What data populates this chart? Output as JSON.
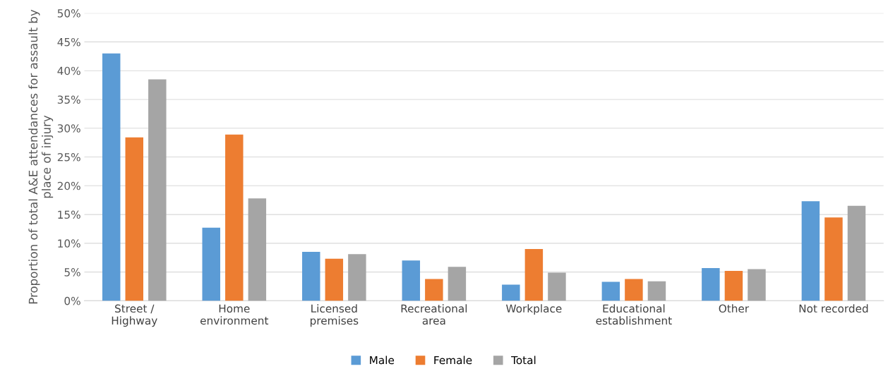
{
  "chart_data": {
    "type": "bar",
    "ylabel": "Proportion of total A&E attendances for assault by\nplace of injury",
    "categories": [
      "Street /\nHighway",
      "Home\nenvironment",
      "Licensed\npremises",
      "Recreational\narea",
      "Workplace",
      "Educational\nestablishment",
      "Other",
      "Not recorded"
    ],
    "series": [
      {
        "name": "Male",
        "color": "#5b9bd5",
        "values": [
          43.0,
          12.7,
          8.5,
          7.0,
          2.8,
          3.3,
          5.7,
          17.3
        ]
      },
      {
        "name": "Female",
        "color": "#ed7d31",
        "values": [
          28.4,
          28.9,
          7.3,
          3.8,
          9.0,
          3.8,
          5.2,
          14.5
        ]
      },
      {
        "name": "Total",
        "color": "#a5a5a5",
        "values": [
          38.5,
          17.8,
          8.1,
          5.9,
          4.9,
          3.4,
          5.5,
          16.5
        ]
      }
    ],
    "ylim": [
      0,
      50
    ],
    "yticks": [
      {
        "value": 0,
        "label": "0%"
      },
      {
        "value": 5,
        "label": "5%"
      },
      {
        "value": 10,
        "label": "10%"
      },
      {
        "value": 15,
        "label": "15%"
      },
      {
        "value": 20,
        "label": "20%"
      },
      {
        "value": 25,
        "label": "25%"
      },
      {
        "value": 30,
        "label": "30%"
      },
      {
        "value": 35,
        "label": "35%"
      },
      {
        "value": 40,
        "label": "40%"
      },
      {
        "value": 45,
        "label": "45%"
      },
      {
        "value": 50,
        "label": "50%"
      }
    ],
    "grid": "y",
    "legend": "bottom"
  }
}
